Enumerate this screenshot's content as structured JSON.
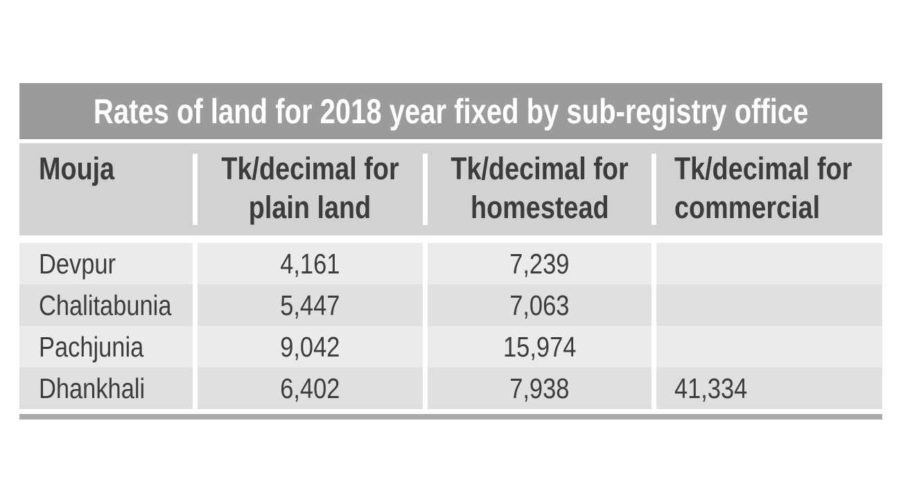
{
  "title": "Rates of land for 2018 year fixed by sub-registry office",
  "header": {
    "mouja": "Mouja",
    "plain_land_line1": "Tk/decimal for",
    "plain_land_line2": "plain land",
    "homestead_line1": "Tk/decimal for",
    "homestead_line2": "homestead",
    "commercial_line1": "Tk/decimal for",
    "commercial_line2": "commercial"
  },
  "rows": [
    {
      "mouja": "Devpur",
      "plain_land": "4,161",
      "homestead": "7,239",
      "commercial": ""
    },
    {
      "mouja": "Chalitabunia",
      "plain_land": "5,447",
      "homestead": "7,063",
      "commercial": ""
    },
    {
      "mouja": "Pachjunia",
      "plain_land": "9,042",
      "homestead": "15,974",
      "commercial": ""
    },
    {
      "mouja": "Dhankhali",
      "plain_land": "6,402",
      "homestead": "7,938",
      "commercial": "41,334"
    }
  ],
  "colors": {
    "title_band": "#9b9b9c",
    "header_band": "#d2d2d3",
    "row_light": "#ebebec",
    "row_dark": "#e0e0e1",
    "bottom_rule": "#ababad",
    "text": "#3c3c3e",
    "title_text": "#ffffff"
  },
  "chart_data": {
    "type": "table",
    "title": "Rates of land for 2018 year fixed by sub-registry office",
    "columns": [
      "Mouja",
      "Tk/decimal for plain land",
      "Tk/decimal for homestead",
      "Tk/decimal for commercial"
    ],
    "rows": [
      [
        "Devpur",
        4161,
        7239,
        null
      ],
      [
        "Chalitabunia",
        5447,
        7063,
        null
      ],
      [
        "Pachjunia",
        9042,
        15974,
        null
      ],
      [
        "Dhankhali",
        6402,
        7938,
        41334
      ]
    ],
    "units": "Tk per decimal",
    "year": "2018"
  }
}
